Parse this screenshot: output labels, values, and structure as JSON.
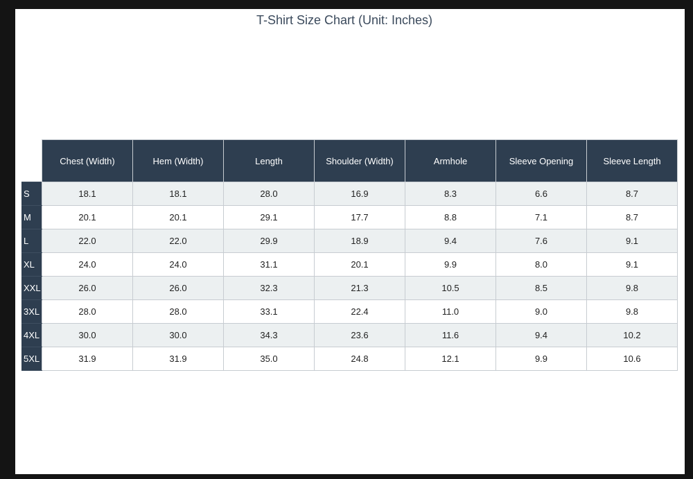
{
  "chart_data": {
    "type": "table",
    "title": "T-Shirt Size Chart (Unit: Inches)",
    "columns": [
      "Chest (Width)",
      "Hem (Width)",
      "Length",
      "Shoulder (Width)",
      "Armhole",
      "Sleeve Opening",
      "Sleeve Length"
    ],
    "rows": [
      {
        "size": "S",
        "values": [
          "18.1",
          "18.1",
          "28.0",
          "16.9",
          "8.3",
          "6.6",
          "8.7"
        ]
      },
      {
        "size": "M",
        "values": [
          "20.1",
          "20.1",
          "29.1",
          "17.7",
          "8.8",
          "7.1",
          "8.7"
        ]
      },
      {
        "size": "L",
        "values": [
          "22.0",
          "22.0",
          "29.9",
          "18.9",
          "9.4",
          "7.6",
          "9.1"
        ]
      },
      {
        "size": "XL",
        "values": [
          "24.0",
          "24.0",
          "31.1",
          "20.1",
          "9.9",
          "8.0",
          "9.1"
        ]
      },
      {
        "size": "XXL",
        "values": [
          "26.0",
          "26.0",
          "32.3",
          "21.3",
          "10.5",
          "8.5",
          "9.8"
        ]
      },
      {
        "size": "3XL",
        "values": [
          "28.0",
          "28.0",
          "33.1",
          "22.4",
          "11.0",
          "9.0",
          "9.8"
        ]
      },
      {
        "size": "4XL",
        "values": [
          "30.0",
          "30.0",
          "34.3",
          "23.6",
          "11.6",
          "9.4",
          "10.2"
        ]
      },
      {
        "size": "5XL",
        "values": [
          "31.9",
          "31.9",
          "35.0",
          "24.8",
          "12.1",
          "9.9",
          "10.6"
        ]
      }
    ]
  },
  "colors": {
    "header_bg": "#2e3e50",
    "row_alt_bg": "#ecf0f1",
    "title_text": "#3b4a5c"
  }
}
